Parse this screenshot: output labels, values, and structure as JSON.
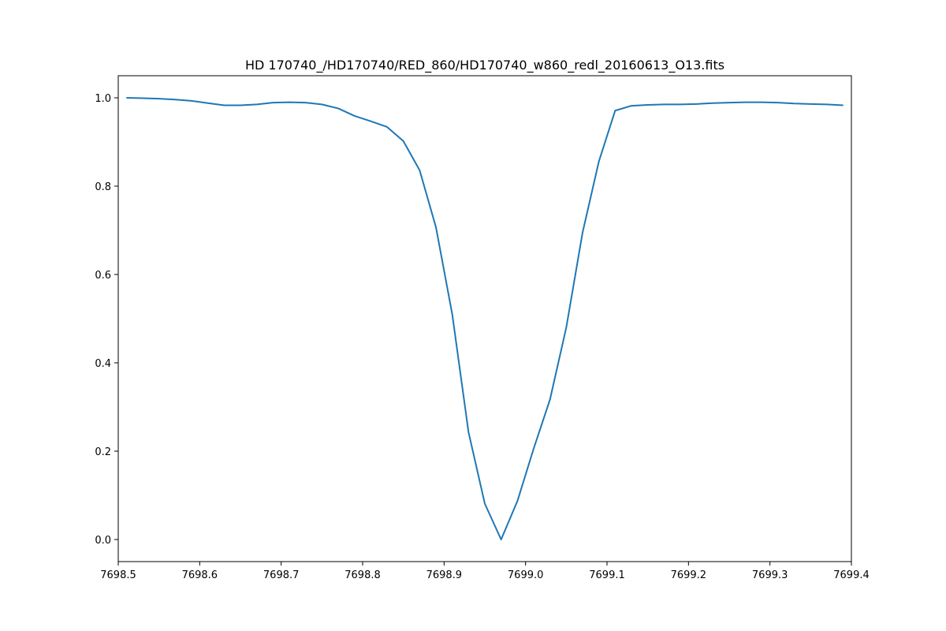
{
  "chart_data": {
    "type": "line",
    "title": "HD 170740_/HD170740/RED_860/HD170740_w860_redl_20160613_O13.fits",
    "xlabel": "",
    "ylabel": "",
    "xlim": [
      7698.5,
      7699.4
    ],
    "ylim": [
      -0.05,
      1.05
    ],
    "grid": false,
    "x_ticks": [
      "7698.5",
      "7698.6",
      "7698.7",
      "7698.8",
      "7698.9",
      "7699.0",
      "7699.1",
      "7699.2",
      "7699.3",
      "7699.4"
    ],
    "y_ticks": [
      "0.0",
      "0.2",
      "0.4",
      "0.6",
      "0.8",
      "1.0"
    ],
    "series": [
      {
        "color": "#1f77b4",
        "x": [
          7698.51,
          7698.53,
          7698.55,
          7698.57,
          7698.59,
          7698.61,
          7698.63,
          7698.65,
          7698.67,
          7698.69,
          7698.71,
          7698.73,
          7698.75,
          7698.77,
          7698.79,
          7698.81,
          7698.83,
          7698.85,
          7698.87,
          7698.89,
          7698.91,
          7698.93,
          7698.95,
          7698.97,
          7698.99,
          7699.01,
          7699.03,
          7699.05,
          7699.07,
          7699.09,
          7699.11,
          7699.13,
          7699.15,
          7699.17,
          7699.19,
          7699.21,
          7699.23,
          7699.25,
          7699.27,
          7699.29,
          7699.31,
          7699.33,
          7699.35,
          7699.37,
          7699.39
        ],
        "y": [
          1.0,
          0.999,
          0.998,
          0.996,
          0.993,
          0.988,
          0.983,
          0.983,
          0.985,
          0.989,
          0.99,
          0.989,
          0.985,
          0.976,
          0.959,
          0.947,
          0.934,
          0.902,
          0.836,
          0.707,
          0.51,
          0.243,
          0.081,
          0.0,
          0.087,
          0.206,
          0.317,
          0.48,
          0.695,
          0.856,
          0.971,
          0.982,
          0.984,
          0.985,
          0.985,
          0.986,
          0.988,
          0.989,
          0.99,
          0.99,
          0.989,
          0.987,
          0.986,
          0.985,
          0.983
        ]
      }
    ]
  }
}
